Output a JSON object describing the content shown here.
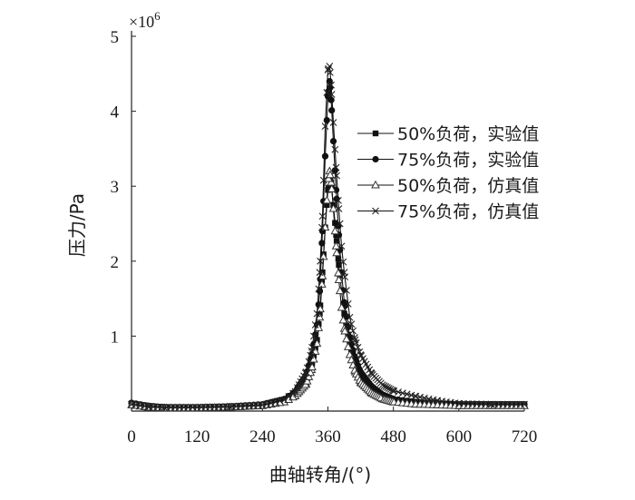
{
  "chart_data": {
    "type": "line",
    "xlabel": "曲轴转角/(°)",
    "ylabel": "压力/Pa",
    "y_multiplier_label": "×10",
    "y_multiplier_exp": "6",
    "xlim": [
      0,
      720
    ],
    "ylim": [
      0,
      5
    ],
    "xticks": [
      0,
      120,
      240,
      360,
      480,
      600,
      720
    ],
    "yticks": [
      1,
      2,
      3,
      4,
      5
    ],
    "y_origin_label": "",
    "grid": false,
    "legend_position": "right-middle",
    "series": [
      {
        "name": "50%负荷，实验值",
        "marker": "square-filled",
        "x": [
          0,
          30,
          60,
          120,
          180,
          240,
          280,
          300,
          320,
          330,
          340,
          345,
          350,
          355,
          360,
          363,
          366,
          370,
          375,
          380,
          385,
          390,
          400,
          410,
          420,
          440,
          460,
          480,
          520,
          560,
          600,
          660,
          720
        ],
        "y": [
          0.1,
          0.07,
          0.05,
          0.05,
          0.06,
          0.08,
          0.14,
          0.22,
          0.4,
          0.6,
          0.95,
          1.3,
          1.85,
          2.45,
          2.95,
          3.1,
          3.05,
          2.75,
          2.35,
          1.95,
          1.6,
          1.3,
          0.9,
          0.65,
          0.48,
          0.3,
          0.2,
          0.15,
          0.12,
          0.1,
          0.09,
          0.09,
          0.09
        ]
      },
      {
        "name": "75%负荷，实验值",
        "marker": "circle-filled",
        "x": [
          0,
          30,
          60,
          120,
          180,
          240,
          280,
          300,
          320,
          330,
          340,
          345,
          350,
          355,
          360,
          363,
          366,
          370,
          375,
          380,
          385,
          390,
          400,
          410,
          420,
          440,
          460,
          480,
          520,
          560,
          600,
          660,
          720
        ],
        "y": [
          0.11,
          0.07,
          0.05,
          0.05,
          0.06,
          0.09,
          0.16,
          0.26,
          0.48,
          0.72,
          1.15,
          1.6,
          2.4,
          3.4,
          4.2,
          4.4,
          4.15,
          3.6,
          2.95,
          2.35,
          1.85,
          1.45,
          0.98,
          0.7,
          0.52,
          0.33,
          0.22,
          0.16,
          0.12,
          0.1,
          0.09,
          0.09,
          0.09
        ]
      },
      {
        "name": "50%负荷，仿真值",
        "marker": "triangle-open",
        "x": [
          0,
          30,
          60,
          120,
          180,
          240,
          280,
          300,
          320,
          330,
          340,
          345,
          350,
          355,
          360,
          363,
          366,
          370,
          375,
          380,
          385,
          390,
          400,
          410,
          420,
          440,
          460,
          480,
          520,
          560,
          600,
          660,
          720
        ],
        "y": [
          0.08,
          0.05,
          0.04,
          0.04,
          0.05,
          0.07,
          0.12,
          0.2,
          0.36,
          0.55,
          0.9,
          1.25,
          1.8,
          2.45,
          3.05,
          3.2,
          3.05,
          2.7,
          2.2,
          1.75,
          1.38,
          1.1,
          0.75,
          0.52,
          0.38,
          0.24,
          0.16,
          0.12,
          0.09,
          0.08,
          0.07,
          0.07,
          0.07
        ]
      },
      {
        "name": "75%负荷，仿真值",
        "marker": "x",
        "x": [
          0,
          30,
          60,
          120,
          180,
          240,
          280,
          300,
          320,
          330,
          340,
          345,
          350,
          355,
          360,
          363,
          366,
          370,
          375,
          380,
          385,
          390,
          400,
          410,
          420,
          440,
          460,
          480,
          520,
          560,
          600,
          660,
          720
        ],
        "y": [
          0.09,
          0.06,
          0.05,
          0.05,
          0.06,
          0.08,
          0.15,
          0.26,
          0.52,
          0.8,
          1.3,
          1.85,
          2.6,
          3.8,
          4.55,
          4.6,
          4.35,
          3.85,
          3.25,
          2.7,
          2.2,
          1.85,
          1.25,
          0.95,
          0.75,
          0.5,
          0.35,
          0.27,
          0.2,
          0.14,
          0.1,
          0.09,
          0.09
        ]
      }
    ]
  }
}
